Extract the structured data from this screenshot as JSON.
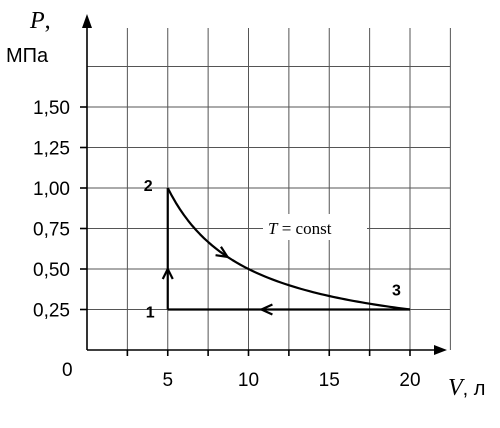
{
  "chart_data": {
    "type": "line",
    "y_axis": {
      "symbol": "P",
      "symbol_suffix": ",",
      "unit": "МПа",
      "ylim": [
        0,
        1.75
      ]
    },
    "x_axis": {
      "symbol": "V",
      "unit": ", л",
      "xlim": [
        0,
        22.5
      ]
    },
    "origin_label": "0",
    "x_ticks": [
      2.5,
      5,
      7.5,
      10,
      12.5,
      15,
      17.5,
      20
    ],
    "x_tick_labels": [
      {
        "value": 5,
        "text": "5"
      },
      {
        "value": 10,
        "text": "10"
      },
      {
        "value": 15,
        "text": "15"
      },
      {
        "value": 20,
        "text": "20"
      }
    ],
    "y_tick_labels": [
      {
        "value": 0.25,
        "text": "0,25"
      },
      {
        "value": 0.5,
        "text": "0,50"
      },
      {
        "value": 0.75,
        "text": "0,75"
      },
      {
        "value": 1.0,
        "text": "1,00"
      },
      {
        "value": 1.25,
        "text": "1,25"
      },
      {
        "value": 1.5,
        "text": "1,50"
      }
    ],
    "grid": true,
    "points": [
      {
        "label": "1",
        "V": 5,
        "P": 0.25
      },
      {
        "label": "2",
        "V": 5,
        "P": 1.0
      },
      {
        "label": "3",
        "V": 20,
        "P": 0.25
      }
    ],
    "processes": [
      {
        "from": "1",
        "to": "2",
        "kind": "isochoric",
        "V": 5
      },
      {
        "from": "2",
        "to": "3",
        "kind": "isothermal",
        "PV_const": 5
      },
      {
        "from": "3",
        "to": "1",
        "kind": "isobaric",
        "P": 0.25
      }
    ],
    "annotation": {
      "symbol": "T",
      "text": " = const"
    }
  }
}
